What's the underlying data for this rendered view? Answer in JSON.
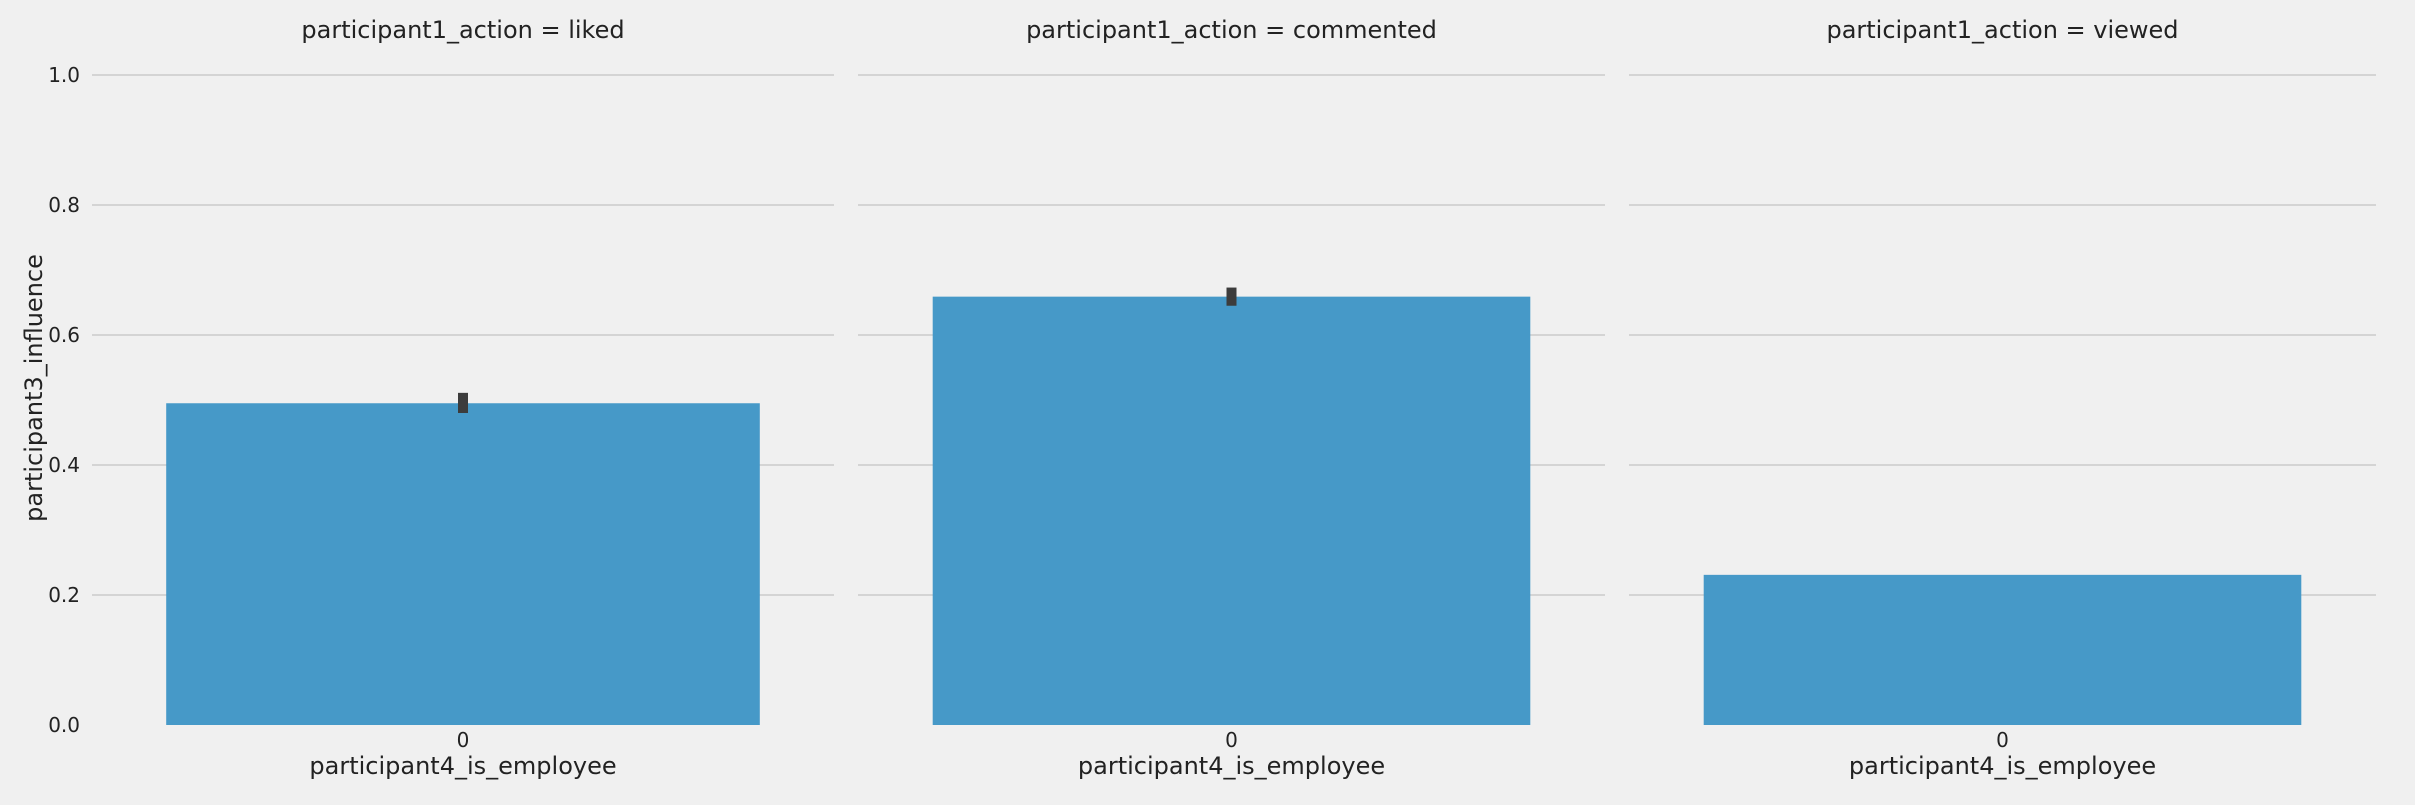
{
  "chart_data": {
    "type": "bar",
    "ylabel": "participant3_influence",
    "ylim": [
      0,
      1.0
    ],
    "yticks": [
      0.0,
      0.2,
      0.4,
      0.6,
      0.8,
      1.0
    ],
    "ytick_labels": [
      "0.0",
      "0.2",
      "0.4",
      "0.6",
      "0.8",
      "1.0"
    ],
    "grid": true,
    "bar_color": "#4699c8",
    "errorbar_color": "#3c3c3c",
    "background_color": "#f0f0f0",
    "facets": [
      {
        "title": "participant1_action = liked",
        "xlabel": "participant4_is_employee",
        "categories": [
          "0"
        ],
        "values": [
          0.495
        ],
        "error_low": [
          0.48
        ],
        "error_high": [
          0.511
        ]
      },
      {
        "title": "participant1_action = commented",
        "xlabel": "participant4_is_employee",
        "categories": [
          "0"
        ],
        "values": [
          0.659
        ],
        "error_low": [
          0.645
        ],
        "error_high": [
          0.673
        ]
      },
      {
        "title": "participant1_action = viewed",
        "xlabel": "participant4_is_employee",
        "categories": [
          "0"
        ],
        "values": [
          0.231
        ],
        "error_low": null,
        "error_high": null
      }
    ]
  }
}
